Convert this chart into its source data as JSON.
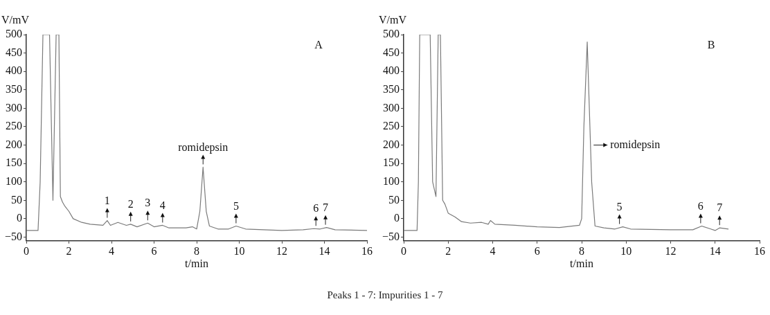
{
  "chart_data": [
    {
      "type": "line",
      "xlabel": "t/min",
      "ylabel": "V/mV",
      "xlim": [
        0,
        16
      ],
      "xticks": [
        0,
        2,
        4,
        6,
        8,
        10,
        12,
        14,
        16
      ],
      "ylim": [
        -60,
        500
      ],
      "yticks": [
        -50,
        0,
        50,
        100,
        150,
        200,
        250,
        300,
        350,
        400,
        450,
        500
      ],
      "grid": false,
      "legend": false,
      "marker": "none",
      "line_style": "solid",
      "series": [
        {
          "color": "#7a7a7a",
          "x": [
            0,
            0.55,
            0.65,
            0.78,
            1.09,
            1.25,
            1.4,
            1.53,
            1.6,
            1.7,
            1.8,
            2.0,
            2.2,
            2.6,
            3.0,
            3.6,
            3.8,
            3.95,
            4.3,
            4.7,
            4.9,
            5.2,
            5.7,
            6.0,
            6.4,
            6.7,
            7.5,
            7.8,
            8.0,
            8.15,
            8.3,
            8.45,
            8.6,
            9.0,
            9.5,
            9.85,
            10.3,
            12,
            13,
            13.5,
            13.8,
            14.1,
            14.5,
            16
          ],
          "values": [
            -32,
            -32,
            100,
            500,
            500,
            50,
            500,
            500,
            60,
            45,
            35,
            20,
            0,
            -10,
            -15,
            -18,
            -5,
            -18,
            -10,
            -18,
            -15,
            -22,
            -12,
            -22,
            -18,
            -25,
            -25,
            -22,
            -28,
            20,
            140,
            20,
            -20,
            -28,
            -28,
            -20,
            -28,
            -32,
            -30,
            -27,
            -28,
            -24,
            -30,
            -32
          ]
        }
      ],
      "annotations": [
        "A",
        {
          "text": "1",
          "x": 3.8,
          "y": -5
        },
        {
          "text": "2",
          "x": 4.9,
          "y": -15
        },
        {
          "text": "3",
          "x": 5.7,
          "y": -12
        },
        {
          "text": "4",
          "x": 6.4,
          "y": -18
        },
        {
          "text": "romidepsin",
          "x": 8.3,
          "y": 140
        },
        {
          "text": "5",
          "x": 9.85,
          "y": -20
        },
        {
          "text": "6",
          "x": 13.6,
          "y": -27
        },
        {
          "text": "7",
          "x": 14.05,
          "y": -24
        }
      ]
    },
    {
      "type": "line",
      "xlabel": "t/min",
      "ylabel": "V/mV",
      "xlim": [
        0,
        16
      ],
      "xticks": [
        0,
        2,
        4,
        6,
        8,
        10,
        12,
        14,
        16
      ],
      "ylim": [
        -60,
        500
      ],
      "yticks": [
        -50,
        0,
        50,
        100,
        150,
        200,
        250,
        300,
        350,
        400,
        450,
        500
      ],
      "grid": false,
      "legend": false,
      "marker": "none",
      "line_style": "solid",
      "series": [
        {
          "color": "#7a7a7a",
          "x": [
            0,
            0.6,
            0.66,
            0.72,
            1.19,
            1.3,
            1.45,
            1.55,
            1.65,
            1.75,
            1.85,
            2.0,
            2.3,
            2.6,
            3.0,
            3.5,
            3.8,
            3.9,
            4.1,
            5,
            6,
            7,
            7.9,
            8.0,
            8.1,
            8.25,
            8.45,
            8.6,
            9.0,
            9.5,
            9.85,
            10.2,
            12,
            13,
            13.4,
            13.8,
            14.0,
            14.2,
            14.6
          ],
          "values": [
            -32,
            -32,
            100,
            500,
            500,
            100,
            60,
            500,
            500,
            50,
            40,
            15,
            5,
            -8,
            -12,
            -10,
            -15,
            -5,
            -15,
            -18,
            -22,
            -24,
            -18,
            0,
            250,
            480,
            100,
            -20,
            -25,
            -28,
            -22,
            -28,
            -30,
            -30,
            -20,
            -28,
            -32,
            -25,
            -28
          ]
        }
      ],
      "annotations": [
        "B",
        {
          "text": "romidepsin",
          "x": 8.35,
          "y": 200
        },
        {
          "text": "5",
          "x": 9.7,
          "y": -22
        },
        {
          "text": "6",
          "x": 13.35,
          "y": -20
        },
        {
          "text": "7",
          "x": 14.2,
          "y": -25
        },
        "Peaks 1 - 7: Impurities 1 - 7"
      ]
    }
  ]
}
